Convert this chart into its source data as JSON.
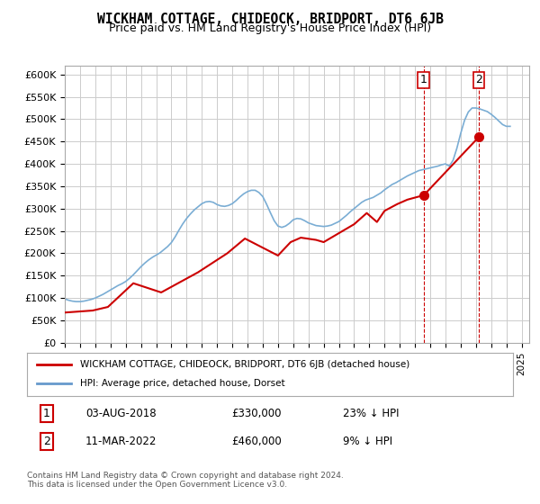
{
  "title": "WICKHAM COTTAGE, CHIDEOCK, BRIDPORT, DT6 6JB",
  "subtitle": "Price paid vs. HM Land Registry's House Price Index (HPI)",
  "ylabel_ticks": [
    "£0",
    "£50K",
    "£100K",
    "£150K",
    "£200K",
    "£250K",
    "£300K",
    "£350K",
    "£400K",
    "£450K",
    "£500K",
    "£550K",
    "£600K"
  ],
  "ylim": [
    0,
    620000
  ],
  "xlim_start": 1995.0,
  "xlim_end": 2025.5,
  "legend_line1": "WICKHAM COTTAGE, CHIDEOCK, BRIDPORT, DT6 6JB (detached house)",
  "legend_line2": "HPI: Average price, detached house, Dorset",
  "legend_color1": "#cc0000",
  "legend_color2": "#6699cc",
  "point1_label": "1",
  "point1_date": "03-AUG-2018",
  "point1_price": "£330,000",
  "point1_hpi": "23% ↓ HPI",
  "point1_x": 2018.58,
  "point1_y": 330000,
  "point2_label": "2",
  "point2_date": "11-MAR-2022",
  "point2_price": "£460,000",
  "point2_hpi": "9% ↓ HPI",
  "point2_x": 2022.19,
  "point2_y": 460000,
  "footnote": "Contains HM Land Registry data © Crown copyright and database right 2024.\nThis data is licensed under the Open Government Licence v3.0.",
  "bg_color": "#ffffff",
  "grid_color": "#cccccc",
  "hpi_color": "#7aadd4",
  "price_color": "#cc0000",
  "hpi_data_x": [
    1995.0,
    1995.25,
    1995.5,
    1995.75,
    1996.0,
    1996.25,
    1996.5,
    1996.75,
    1997.0,
    1997.25,
    1997.5,
    1997.75,
    1998.0,
    1998.25,
    1998.5,
    1998.75,
    1999.0,
    1999.25,
    1999.5,
    1999.75,
    2000.0,
    2000.25,
    2000.5,
    2000.75,
    2001.0,
    2001.25,
    2001.5,
    2001.75,
    2002.0,
    2002.25,
    2002.5,
    2002.75,
    2003.0,
    2003.25,
    2003.5,
    2003.75,
    2004.0,
    2004.25,
    2004.5,
    2004.75,
    2005.0,
    2005.25,
    2005.5,
    2005.75,
    2006.0,
    2006.25,
    2006.5,
    2006.75,
    2007.0,
    2007.25,
    2007.5,
    2007.75,
    2008.0,
    2008.25,
    2008.5,
    2008.75,
    2009.0,
    2009.25,
    2009.5,
    2009.75,
    2010.0,
    2010.25,
    2010.5,
    2010.75,
    2011.0,
    2011.25,
    2011.5,
    2011.75,
    2012.0,
    2012.25,
    2012.5,
    2012.75,
    2013.0,
    2013.25,
    2013.5,
    2013.75,
    2014.0,
    2014.25,
    2014.5,
    2014.75,
    2015.0,
    2015.25,
    2015.5,
    2015.75,
    2016.0,
    2016.25,
    2016.5,
    2016.75,
    2017.0,
    2017.25,
    2017.5,
    2017.75,
    2018.0,
    2018.25,
    2018.5,
    2018.75,
    2019.0,
    2019.25,
    2019.5,
    2019.75,
    2020.0,
    2020.25,
    2020.5,
    2020.75,
    2021.0,
    2021.25,
    2021.5,
    2021.75,
    2022.0,
    2022.25,
    2022.5,
    2022.75,
    2023.0,
    2023.25,
    2023.5,
    2023.75,
    2024.0,
    2024.25
  ],
  "hpi_data_y": [
    98000,
    95000,
    93000,
    92000,
    92000,
    93000,
    95000,
    97000,
    100000,
    104000,
    108000,
    113000,
    118000,
    123000,
    128000,
    132000,
    137000,
    144000,
    152000,
    161000,
    170000,
    178000,
    185000,
    191000,
    196000,
    201000,
    208000,
    215000,
    224000,
    237000,
    252000,
    266000,
    278000,
    288000,
    297000,
    304000,
    311000,
    315000,
    316000,
    314000,
    309000,
    306000,
    305000,
    307000,
    311000,
    318000,
    326000,
    333000,
    338000,
    341000,
    341000,
    336000,
    327000,
    310000,
    291000,
    273000,
    261000,
    258000,
    261000,
    267000,
    275000,
    278000,
    277000,
    273000,
    268000,
    265000,
    262000,
    261000,
    260000,
    261000,
    263000,
    267000,
    271000,
    278000,
    285000,
    293000,
    300000,
    307000,
    314000,
    319000,
    322000,
    325000,
    330000,
    335000,
    342000,
    348000,
    354000,
    358000,
    363000,
    368000,
    373000,
    377000,
    381000,
    385000,
    387000,
    389000,
    391000,
    393000,
    395000,
    398000,
    400000,
    395000,
    408000,
    435000,
    468000,
    497000,
    516000,
    525000,
    525000,
    523000,
    520000,
    517000,
    511000,
    504000,
    496000,
    488000,
    484000,
    484000
  ],
  "price_data_x": [
    1995.0,
    1996.83,
    1997.83,
    1999.5,
    2001.33,
    2003.75,
    2005.67,
    2006.83,
    2009.0,
    2009.83,
    2010.5,
    2011.5,
    2012.0,
    2013.5,
    2014.0,
    2014.83,
    2015.5,
    2016.0,
    2016.83,
    2017.5,
    2018.58,
    2022.19
  ],
  "price_data_y": [
    67500,
    72000,
    80000,
    133000,
    112500,
    157500,
    200000,
    233000,
    195000,
    225000,
    235000,
    230000,
    225000,
    255000,
    265000,
    290000,
    270000,
    295000,
    310000,
    320000,
    330000,
    460000
  ]
}
